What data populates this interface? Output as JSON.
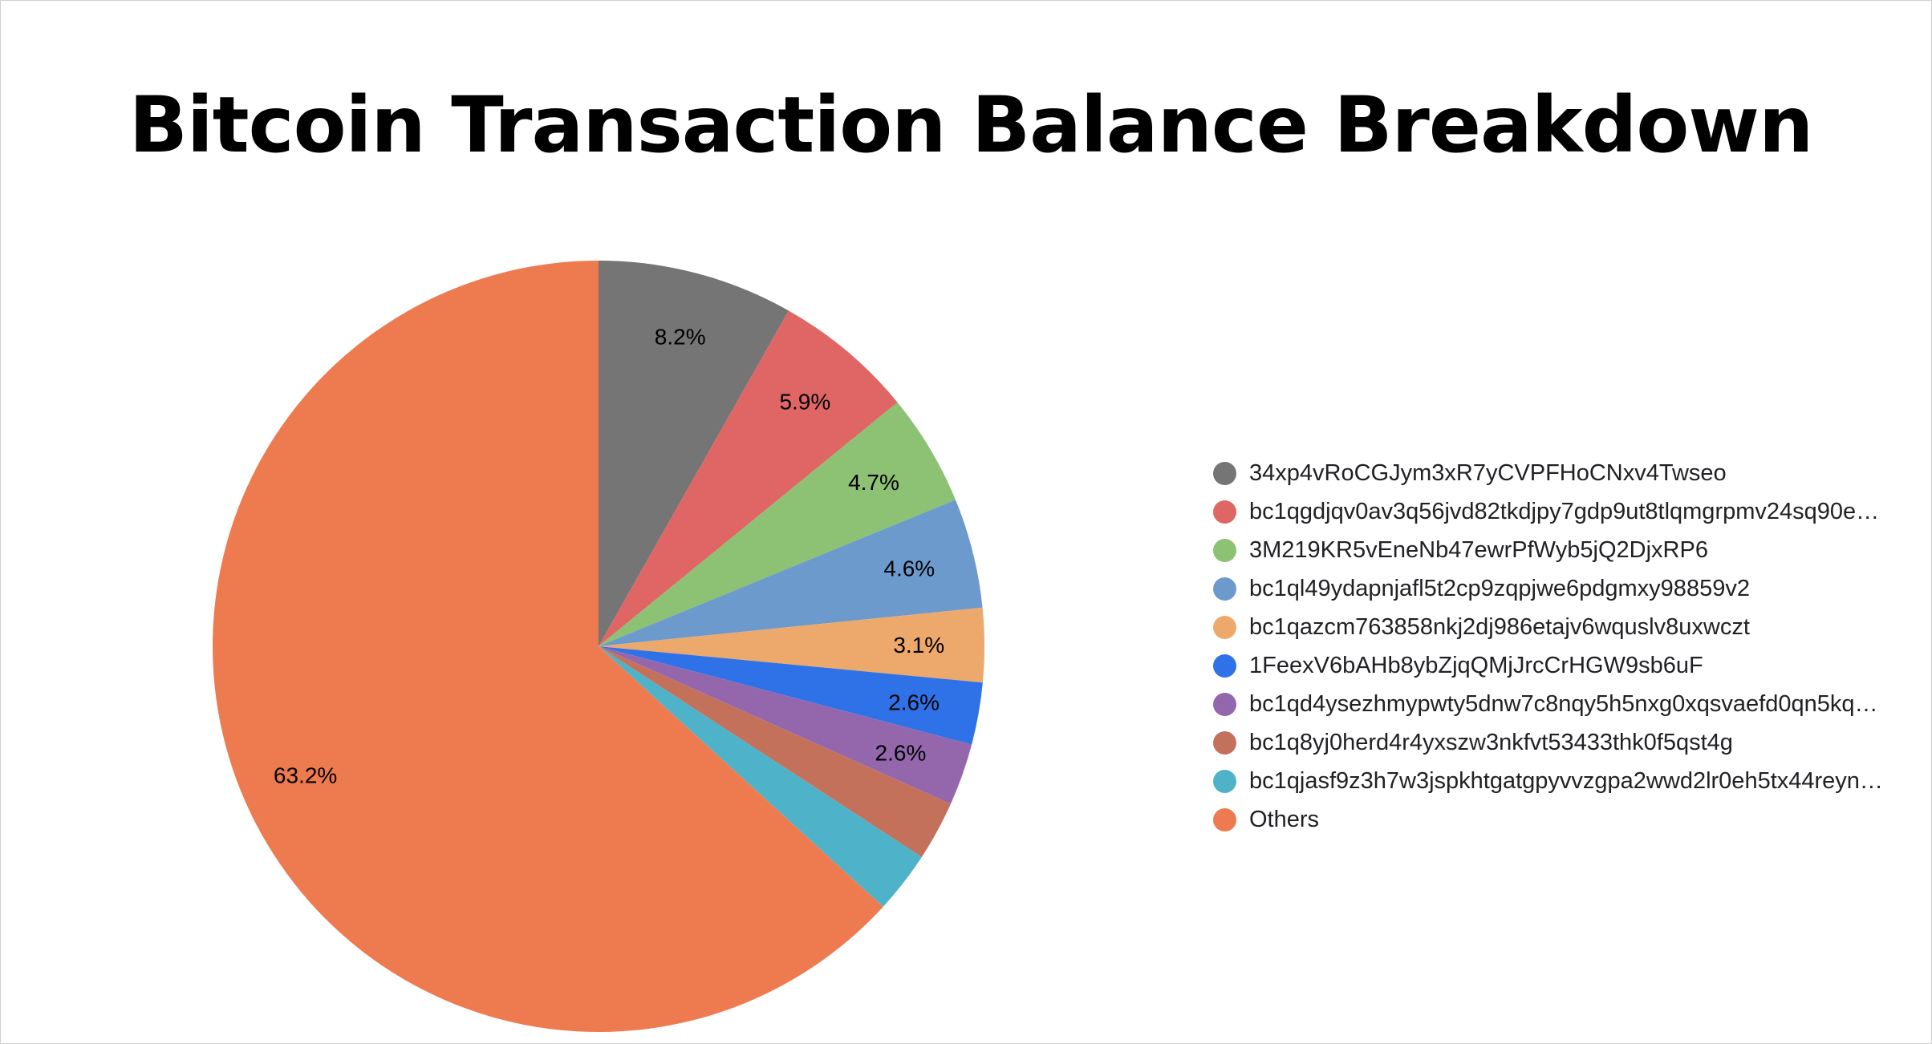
{
  "chart_data": {
    "type": "pie",
    "title": "Bitcoin Transaction Balance Breakdown",
    "legend_position": "right",
    "slices": [
      {
        "label": "34xp4vRoCGJym3xR7yCVPFHoCNxv4Twseo",
        "legend_text": "34xp4vRoCGJym3xR7yCVPFHoCNxv4Twseo",
        "value": 8.2,
        "value_label": "8.2%",
        "color": "#757575"
      },
      {
        "label": "bc1qgdjqv0av3q56jvd82tkdjpy7gdp9ut8tlqmgrpmv24sq90e...",
        "legend_text": "bc1qgdjqv0av3q56jvd82tkdjpy7gdp9ut8tlqmgrpmv24sq90e…",
        "value": 5.9,
        "value_label": "5.9%",
        "color": "#E06666"
      },
      {
        "label": "3M219KR5vEneNb47ewrPfWyb5jQ2DjxRP6",
        "legend_text": "3M219KR5vEneNb47ewrPfWyb5jQ2DjxRP6",
        "value": 4.7,
        "value_label": "4.7%",
        "color": "#8DC173"
      },
      {
        "label": "bc1ql49ydapnjafl5t2cp9zqpjwe6pdgmxy98859v2",
        "legend_text": "bc1ql49ydapnjafl5t2cp9zqpjwe6pdgmxy98859v2",
        "value": 4.6,
        "value_label": "4.6%",
        "color": "#6D9ACD"
      },
      {
        "label": "bc1qazcm763858nkj2dj986etajv6wquslv8uxwczt",
        "legend_text": "bc1qazcm763858nkj2dj986etajv6wquslv8uxwczt",
        "value": 3.1,
        "value_label": "3.1%",
        "color": "#EDA96C"
      },
      {
        "label": "1FeexV6bAHb8ybZjqQMjJrcCrHGW9sb6uF",
        "legend_text": "1FeexV6bAHb8ybZjqQMjJrcCrHGW9sb6uF",
        "value": 2.6,
        "value_label": "2.6%",
        "color": "#2F72E8"
      },
      {
        "label": "bc1qd4ysezhmypwty5dnw7c8nqy5h5nxg0xqsvaefd0qn5kq...",
        "legend_text": "bc1qd4ysezhmypwty5dnw7c8nqy5h5nxg0xqsvaefd0qn5kq…",
        "value": 2.6,
        "value_label": "2.6%",
        "color": "#9467AD"
      },
      {
        "label": "bc1q8yj0herd4r4yxszw3nkfvt53433thk0f5qst4g",
        "legend_text": "bc1q8yj0herd4r4yxszw3nkfvt53433thk0f5qst4g",
        "value": 2.5,
        "value_label": "",
        "color": "#C4715C"
      },
      {
        "label": "bc1qjasf9z3h7w3jspkhtgatgpyvvzgpa2wwd2lr0eh5tx44reyn...",
        "legend_text": "bc1qjasf9z3h7w3jspkhtgatgpyvvzgpa2wwd2lr0eh5tx44reyn…",
        "value": 2.6,
        "value_label": "",
        "color": "#4EB3C8"
      },
      {
        "label": "Others",
        "legend_text": "Others",
        "value": 63.2,
        "value_label": "63.2%",
        "color": "#EE7B50"
      }
    ]
  }
}
